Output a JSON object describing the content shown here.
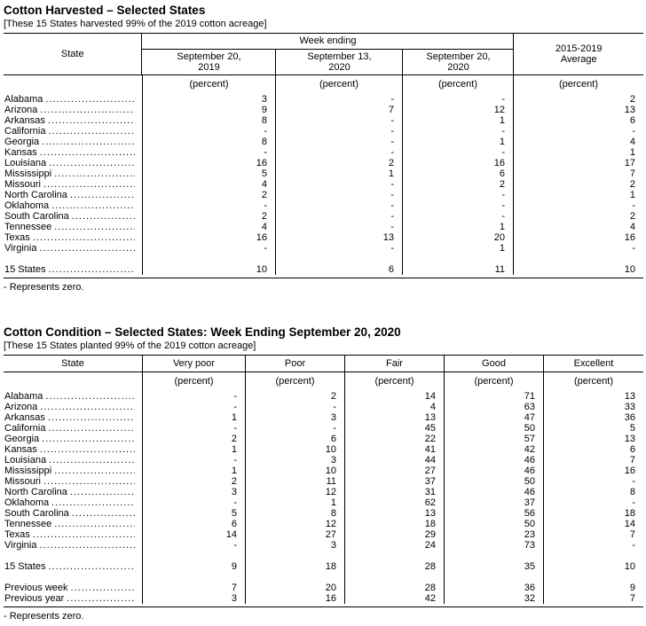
{
  "tables": [
    {
      "id": "cotton-harvested",
      "title": "Cotton Harvested – Selected States",
      "note": "[These 15 States harvested 99% of the 2019 cotton acreage]",
      "header": {
        "state_label": "State",
        "group_label": "Week ending",
        "group_columns": [
          "September 20,\n2019",
          "September 13,\n2020",
          "September 20,\n2020"
        ],
        "last_column": "2015-2019\nAverage",
        "unit": "(percent)"
      },
      "rows": [
        {
          "state": "Alabama",
          "values": [
            "3",
            "-",
            "-",
            "2"
          ]
        },
        {
          "state": "Arizona",
          "values": [
            "9",
            "7",
            "12",
            "13"
          ]
        },
        {
          "state": "Arkansas",
          "values": [
            "8",
            "-",
            "1",
            "6"
          ]
        },
        {
          "state": "California",
          "values": [
            "-",
            "-",
            "-",
            "-"
          ]
        },
        {
          "state": "Georgia",
          "values": [
            "8",
            "-",
            "1",
            "4"
          ]
        },
        {
          "state": "Kansas",
          "values": [
            "-",
            "-",
            "-",
            "1"
          ]
        },
        {
          "state": "Louisiana",
          "values": [
            "16",
            "2",
            "16",
            "17"
          ]
        },
        {
          "state": "Mississippi",
          "values": [
            "5",
            "1",
            "6",
            "7"
          ]
        },
        {
          "state": "Missouri",
          "values": [
            "4",
            "-",
            "2",
            "2"
          ]
        },
        {
          "state": "North Carolina",
          "values": [
            "2",
            "-",
            "-",
            "1"
          ]
        },
        {
          "state": "Oklahoma",
          "values": [
            "-",
            "-",
            "-",
            "-"
          ]
        },
        {
          "state": "South Carolina",
          "values": [
            "2",
            "-",
            "-",
            "2"
          ]
        },
        {
          "state": "Tennessee",
          "values": [
            "4",
            "-",
            "1",
            "4"
          ]
        },
        {
          "state": "Texas",
          "values": [
            "16",
            "13",
            "20",
            "16"
          ]
        },
        {
          "state": "Virginia",
          "values": [
            "-",
            "-",
            "1",
            "-"
          ]
        }
      ],
      "total_row": {
        "state": "15 States",
        "values": [
          "10",
          "6",
          "11",
          "10"
        ]
      },
      "footnote": "- Represents zero."
    },
    {
      "id": "cotton-condition",
      "title": "Cotton Condition – Selected States: Week Ending September 20, 2020",
      "note": "[These 15 States planted 99% of the 2019 cotton acreage]",
      "header": {
        "state_label": "State",
        "columns": [
          "Very poor",
          "Poor",
          "Fair",
          "Good",
          "Excellent"
        ],
        "unit": "(percent)"
      },
      "rows": [
        {
          "state": "Alabama",
          "values": [
            "-",
            "2",
            "14",
            "71",
            "13"
          ]
        },
        {
          "state": "Arizona",
          "values": [
            "-",
            "-",
            "4",
            "63",
            "33"
          ]
        },
        {
          "state": "Arkansas",
          "values": [
            "1",
            "3",
            "13",
            "47",
            "36"
          ]
        },
        {
          "state": "California",
          "values": [
            "-",
            "-",
            "45",
            "50",
            "5"
          ]
        },
        {
          "state": "Georgia",
          "values": [
            "2",
            "6",
            "22",
            "57",
            "13"
          ]
        },
        {
          "state": "Kansas",
          "values": [
            "1",
            "10",
            "41",
            "42",
            "6"
          ]
        },
        {
          "state": "Louisiana",
          "values": [
            "-",
            "3",
            "44",
            "46",
            "7"
          ]
        },
        {
          "state": "Mississippi",
          "values": [
            "1",
            "10",
            "27",
            "46",
            "16"
          ]
        },
        {
          "state": "Missouri",
          "values": [
            "2",
            "11",
            "37",
            "50",
            "-"
          ]
        },
        {
          "state": "North Carolina",
          "values": [
            "3",
            "12",
            "31",
            "46",
            "8"
          ]
        },
        {
          "state": "Oklahoma",
          "values": [
            "-",
            "1",
            "62",
            "37",
            "-"
          ]
        },
        {
          "state": "South Carolina",
          "values": [
            "5",
            "8",
            "13",
            "56",
            "18"
          ]
        },
        {
          "state": "Tennessee",
          "values": [
            "6",
            "12",
            "18",
            "50",
            "14"
          ]
        },
        {
          "state": "Texas",
          "values": [
            "14",
            "27",
            "29",
            "23",
            "7"
          ]
        },
        {
          "state": "Virginia",
          "values": [
            "-",
            "3",
            "24",
            "73",
            "-"
          ]
        }
      ],
      "total_row": {
        "state": "15 States",
        "values": [
          "9",
          "18",
          "28",
          "35",
          "10"
        ]
      },
      "extra_rows": [
        {
          "state": "Previous week",
          "values": [
            "7",
            "20",
            "28",
            "36",
            "9"
          ]
        },
        {
          "state": "Previous year",
          "values": [
            "3",
            "16",
            "42",
            "32",
            "7"
          ]
        }
      ],
      "footnote": "- Represents zero."
    }
  ]
}
